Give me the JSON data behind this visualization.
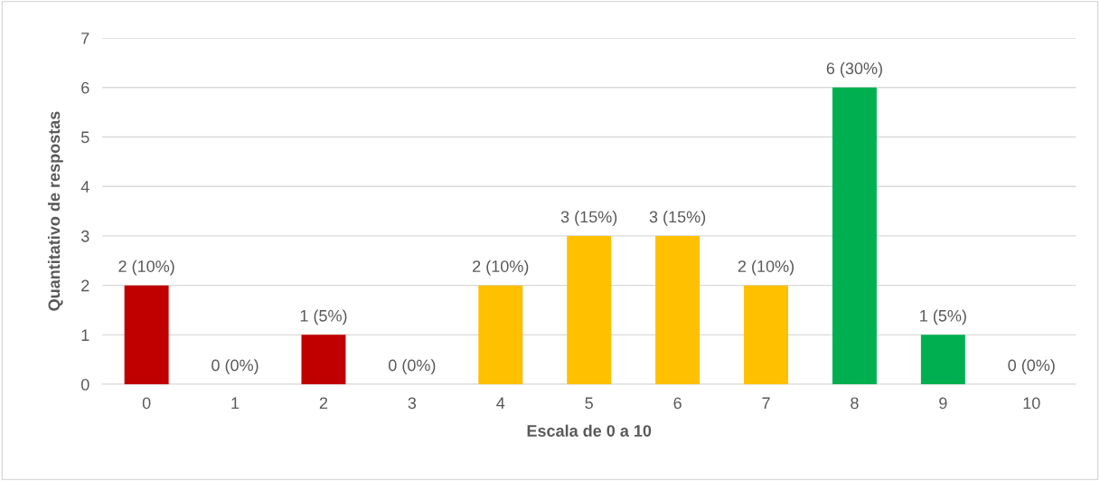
{
  "chart_data": {
    "type": "bar",
    "xlabel": "Escala de 0 a 10",
    "ylabel": "Quantitativo de respostas",
    "categories": [
      "0",
      "1",
      "2",
      "3",
      "4",
      "5",
      "6",
      "7",
      "8",
      "9",
      "10"
    ],
    "values": [
      2,
      0,
      1,
      0,
      2,
      3,
      3,
      2,
      6,
      1,
      0
    ],
    "colors": [
      "#c00000",
      "#c00000",
      "#c00000",
      "#ffc000",
      "#ffc000",
      "#ffc000",
      "#ffc000",
      "#ffc000",
      "#00b050",
      "#00b050",
      "#00b050"
    ],
    "value_labels": [
      "2 (10%)",
      "0 (0%)",
      "1 (5%)",
      "0 (0%)",
      "2 (10%)",
      "3 (15%)",
      "3 (15%)",
      "2 (10%)",
      "6 (30%)",
      "1 (5%)",
      "0 (0%)"
    ],
    "ylim": [
      0,
      7
    ],
    "yticks": [
      0,
      1,
      2,
      3,
      4,
      5,
      6,
      7
    ],
    "grid": "y"
  }
}
